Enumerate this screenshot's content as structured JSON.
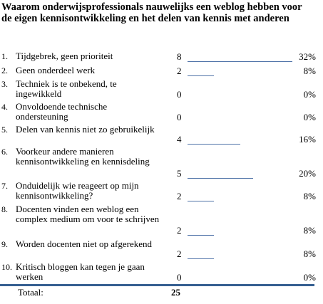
{
  "header": {
    "title": "Waarom onderwijsprofessionals nauwelijks een weblog hebben voor de eigen kennisontwikkeling en het delen van kennis met anderen"
  },
  "table": {
    "rows": [
      {
        "number": "1.",
        "text": "Tijdgebrek, geen prioriteit",
        "count": 8,
        "percent": "32%"
      },
      {
        "number": "2.",
        "text": "Geen onderdeel werk",
        "count": 2,
        "percent": "8%"
      },
      {
        "number": "3.",
        "text": "Techniek is te onbekend, te ingewikkeld",
        "count": 0,
        "percent": "0%"
      },
      {
        "number": "4.",
        "text": "Onvoldoende technische ondersteuning",
        "count": 0,
        "percent": "0%"
      },
      {
        "number": "5.",
        "text": "Delen van kennis niet zo gebruikelijk",
        "count": 4,
        "percent": "16%"
      },
      {
        "number": "6.",
        "text": "Voorkeur andere manieren kennisontwikkeling en kennisdeling",
        "count": 5,
        "percent": "20%"
      },
      {
        "number": "7.",
        "text": "Onduidelijk wie reageert op mijn kennisontwikkeling?",
        "count": 2,
        "percent": "8%"
      },
      {
        "number": "8.",
        "text": "Docenten vinden een weblog een complex medium om voor te schrijven",
        "count": 2,
        "percent": "8%"
      },
      {
        "number": "9.",
        "text": "Worden docenten niet op afgerekend",
        "count": 2,
        "percent": "8%"
      },
      {
        "number": "10.",
        "text": "Kritisch bloggen kan tegen je gaan werken",
        "count": 0,
        "percent": "0%"
      }
    ],
    "total": {
      "label": "Totaal:",
      "value": 25
    }
  }
}
